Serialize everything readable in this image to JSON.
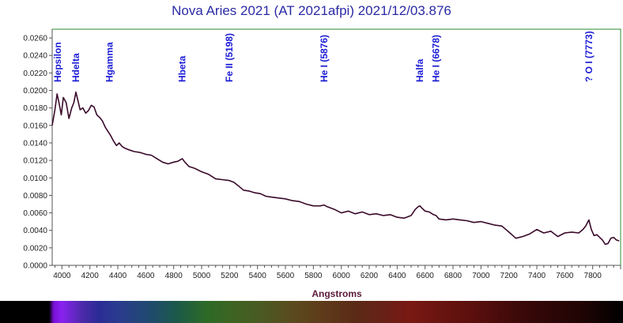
{
  "chart_data": {
    "type": "line",
    "title": "Nova Aries 2021 (AT 2021afpi)  2021/12/03.876",
    "xlabel": "Angstroms",
    "ylabel": "",
    "xlim": [
      3930,
      8000
    ],
    "ylim": [
      0,
      0.027
    ],
    "grid": false,
    "x_ticks": [
      4000,
      4200,
      4400,
      4600,
      4800,
      5000,
      5200,
      5400,
      5600,
      5800,
      6000,
      6200,
      6400,
      6600,
      6800,
      7000,
      7200,
      7400,
      7600,
      7800
    ],
    "y_ticks": [
      "0.0000",
      "0.0020",
      "0.0040",
      "0.0060",
      "0.0080",
      "0.0100",
      "0.0120",
      "0.0140",
      "0.0160",
      "0.0180",
      "0.0200",
      "0.0220",
      "0.0240",
      "0.0260"
    ],
    "series": [
      {
        "color": "#3a0a2a",
        "x": [
          3930,
          3950,
          3965,
          3980,
          3995,
          4010,
          4030,
          4050,
          4070,
          4085,
          4100,
          4115,
          4130,
          4150,
          4170,
          4190,
          4210,
          4230,
          4250,
          4270,
          4290,
          4310,
          4330,
          4350,
          4370,
          4390,
          4410,
          4430,
          4450,
          4480,
          4520,
          4560,
          4600,
          4640,
          4680,
          4720,
          4760,
          4800,
          4830,
          4861,
          4880,
          4910,
          4950,
          5000,
          5050,
          5100,
          5150,
          5198,
          5230,
          5270,
          5300,
          5340,
          5380,
          5420,
          5460,
          5500,
          5550,
          5600,
          5650,
          5700,
          5750,
          5800,
          5850,
          5876,
          5900,
          5950,
          6000,
          6050,
          6100,
          6150,
          6200,
          6250,
          6300,
          6350,
          6400,
          6450,
          6500,
          6530,
          6550,
          6563,
          6580,
          6600,
          6630,
          6660,
          6678,
          6700,
          6750,
          6800,
          6850,
          6900,
          6950,
          7000,
          7050,
          7100,
          7150,
          7200,
          7250,
          7300,
          7350,
          7400,
          7450,
          7500,
          7550,
          7600,
          7650,
          7700,
          7730,
          7750,
          7773,
          7790,
          7810,
          7830,
          7850,
          7870,
          7890,
          7910,
          7930,
          7950,
          7970,
          7990
        ],
        "values": [
          0.016,
          0.0178,
          0.0196,
          0.0185,
          0.0172,
          0.0192,
          0.0186,
          0.0168,
          0.018,
          0.0186,
          0.0198,
          0.0188,
          0.0178,
          0.018,
          0.0174,
          0.0177,
          0.0183,
          0.0181,
          0.0172,
          0.0169,
          0.0165,
          0.0158,
          0.0153,
          0.0148,
          0.0142,
          0.0137,
          0.014,
          0.0136,
          0.0134,
          0.0132,
          0.013,
          0.0129,
          0.0127,
          0.0126,
          0.0122,
          0.0118,
          0.0116,
          0.0118,
          0.0119,
          0.0122,
          0.0118,
          0.0113,
          0.0111,
          0.0107,
          0.0104,
          0.0099,
          0.0098,
          0.0097,
          0.0095,
          0.009,
          0.0086,
          0.0085,
          0.0083,
          0.0082,
          0.0079,
          0.0078,
          0.0077,
          0.0076,
          0.0074,
          0.0073,
          0.007,
          0.0068,
          0.0068,
          0.0069,
          0.0067,
          0.0064,
          0.006,
          0.0062,
          0.0059,
          0.0061,
          0.0058,
          0.0059,
          0.0057,
          0.0058,
          0.0055,
          0.0054,
          0.0057,
          0.0064,
          0.0067,
          0.0068,
          0.0065,
          0.0062,
          0.0061,
          0.0058,
          0.0057,
          0.0053,
          0.0052,
          0.0053,
          0.0052,
          0.0051,
          0.0049,
          0.005,
          0.0048,
          0.0046,
          0.0045,
          0.0038,
          0.0031,
          0.0033,
          0.0036,
          0.0041,
          0.0037,
          0.0039,
          0.0033,
          0.0037,
          0.0038,
          0.0037,
          0.0041,
          0.0045,
          0.0052,
          0.0041,
          0.0034,
          0.0035,
          0.0032,
          0.0029,
          0.0024,
          0.0025,
          0.0031,
          0.0032,
          0.0029,
          0.0028
        ]
      }
    ],
    "annotations": [
      {
        "text": "Hepsilon",
        "x": 3970
      },
      {
        "text": "Hdelta",
        "x": 4101
      },
      {
        "text": "Hgamma",
        "x": 4340
      },
      {
        "text": "Hbeta",
        "x": 4861
      },
      {
        "text": "Fe II (5198)",
        "x": 5198
      },
      {
        "text": "He I  (5876)",
        "x": 5876
      },
      {
        "text": "Halfa",
        "x": 6563
      },
      {
        "text": "He I (6678)",
        "x": 6678
      },
      {
        "text": "? O I  (7773)",
        "x": 7773
      }
    ],
    "colors": {
      "frame": "#2e8b2e",
      "line": "#3a0a2a",
      "labels": "#1b1bd6",
      "axis_title": "#5a1a3a",
      "title": "#2a2aa6"
    }
  }
}
